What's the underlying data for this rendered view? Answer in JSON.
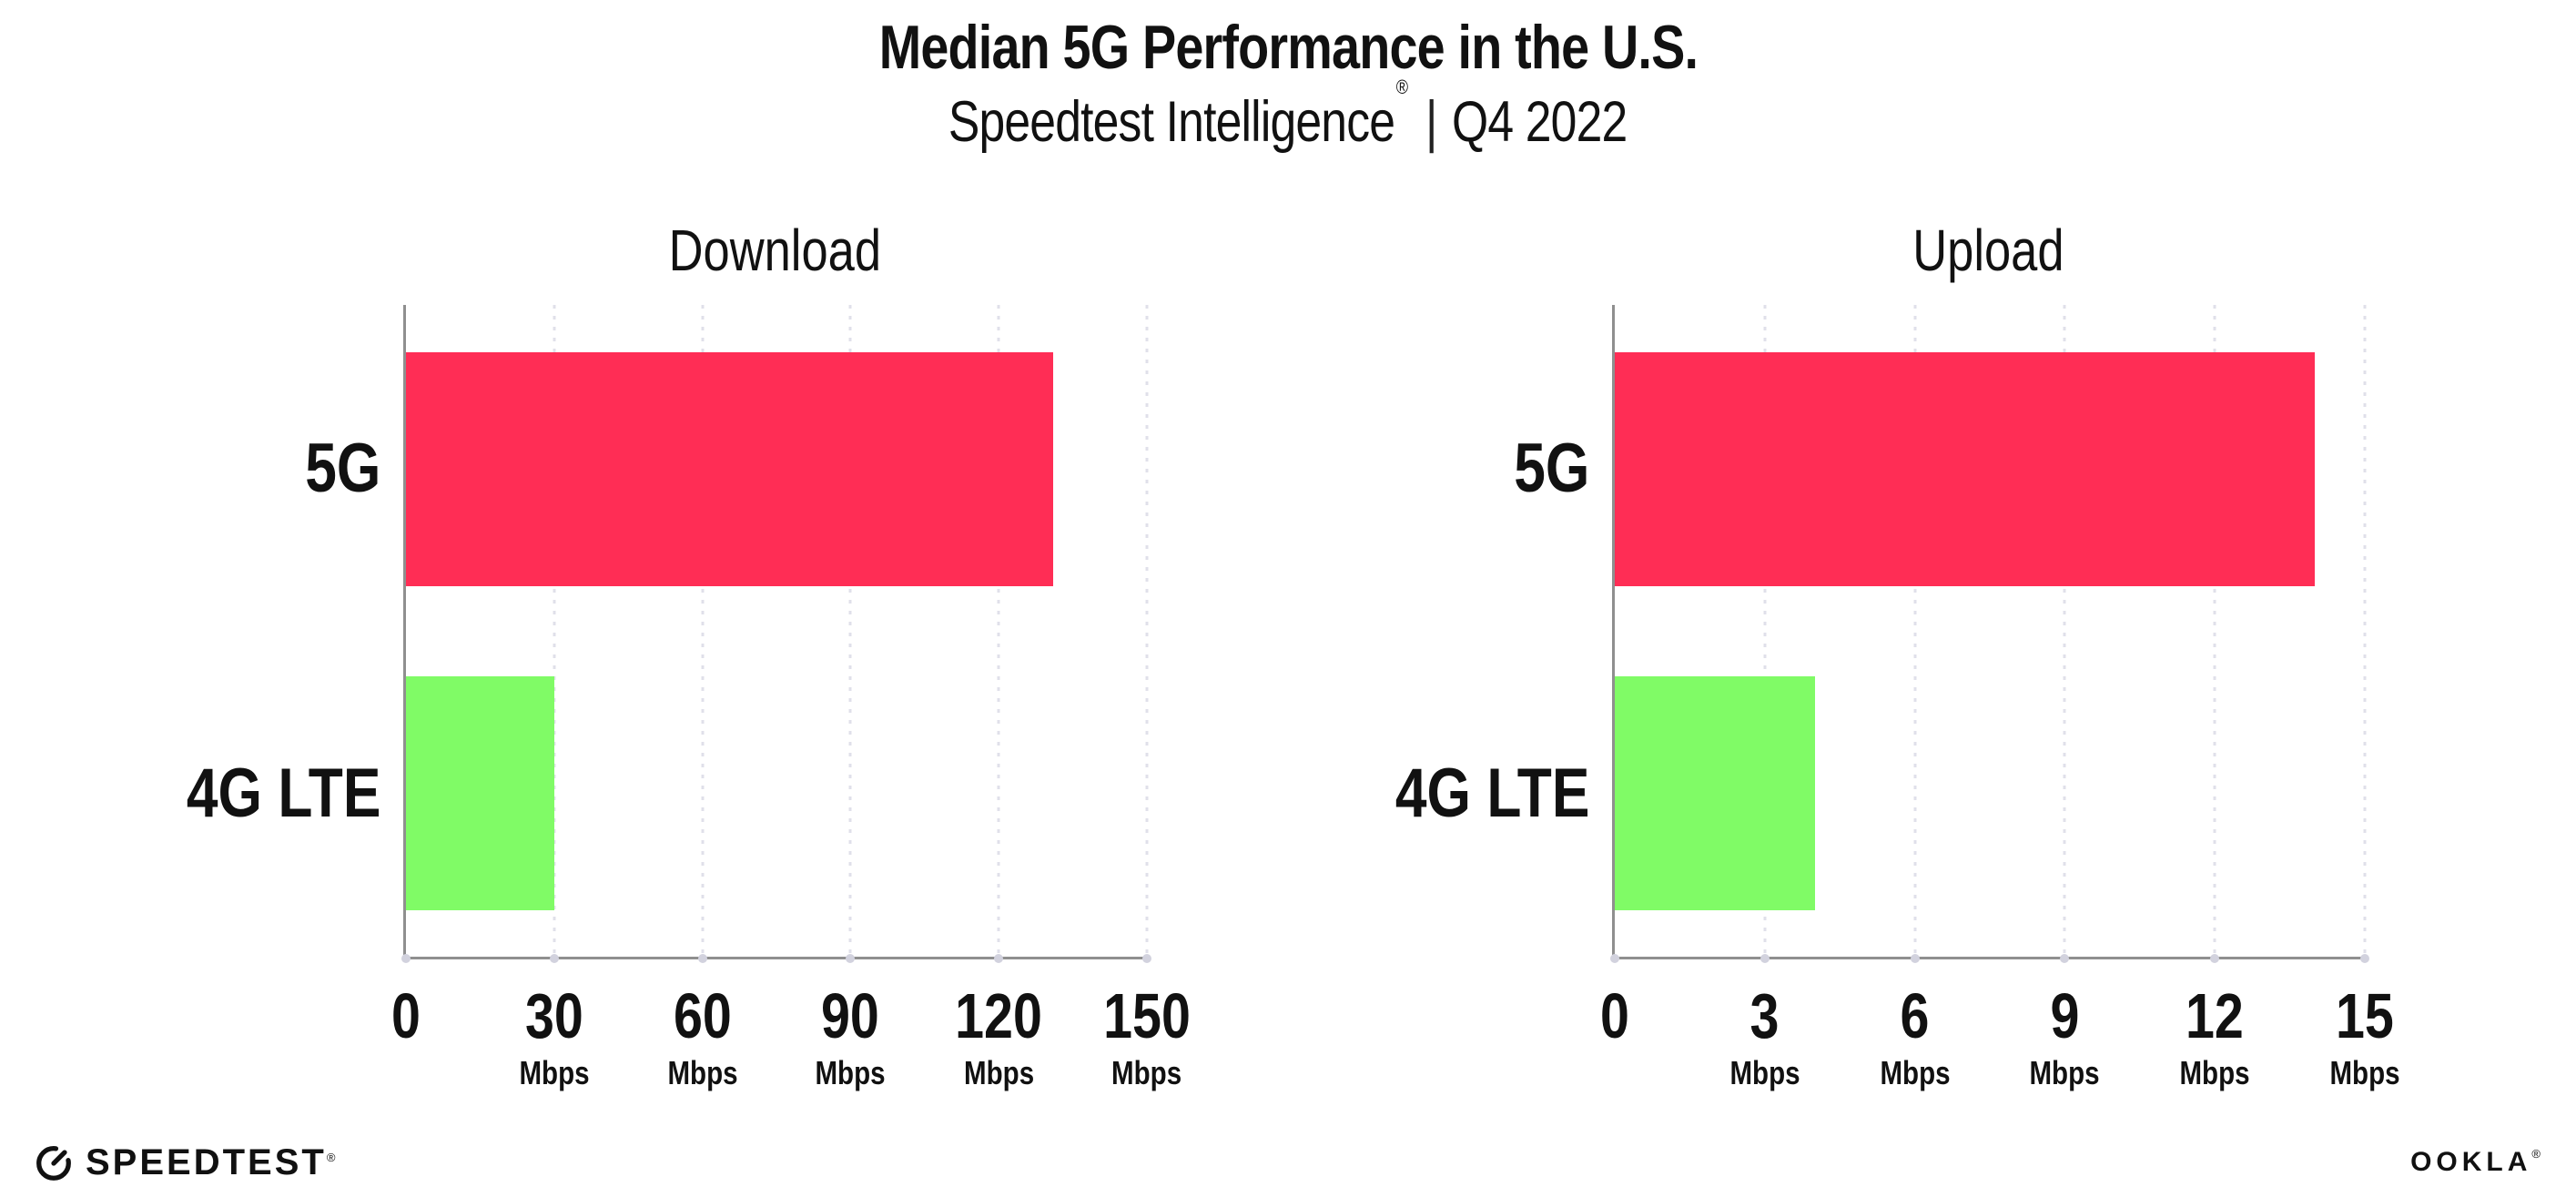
{
  "header": {
    "title": "Median 5G Performance in the U.S.",
    "subtitle_brand": "Speedtest Intelligence",
    "subtitle_reg": "®",
    "subtitle_divider": "|",
    "subtitle_period": "Q4 2022"
  },
  "chart_data": [
    {
      "type": "bar",
      "orientation": "horizontal",
      "title": "Download",
      "categories": [
        "5G",
        "4G LTE"
      ],
      "values": [
        131,
        30
      ],
      "unit": "Mbps",
      "xlim": [
        0,
        150
      ],
      "xticks": [
        0,
        30,
        60,
        90,
        120,
        150
      ],
      "series_colors": [
        "#FF2D55",
        "#80FB66"
      ],
      "grid": "vertical-dotted",
      "legend": "none"
    },
    {
      "type": "bar",
      "orientation": "horizontal",
      "title": "Upload",
      "categories": [
        "5G",
        "4G LTE"
      ],
      "values": [
        14,
        4
      ],
      "unit": "Mbps",
      "xlim": [
        0,
        15
      ],
      "xticks": [
        0,
        3,
        6,
        9,
        12,
        15
      ],
      "series_colors": [
        "#FF2D55",
        "#80FB66"
      ],
      "grid": "vertical-dotted",
      "legend": "none"
    }
  ],
  "colors": {
    "bar_5g": "#FF2D55",
    "bar_4g_lte": "#80FB66",
    "axis_line": "#8f8f8f",
    "gridline": "#e0e0ea",
    "tick_dot": "#d2d2de",
    "text": "#111111"
  },
  "footer": {
    "speedtest_label": "SPEEDTEST",
    "speedtest_reg": "®",
    "ookla_label": "OOKLA",
    "ookla_reg": "®"
  }
}
